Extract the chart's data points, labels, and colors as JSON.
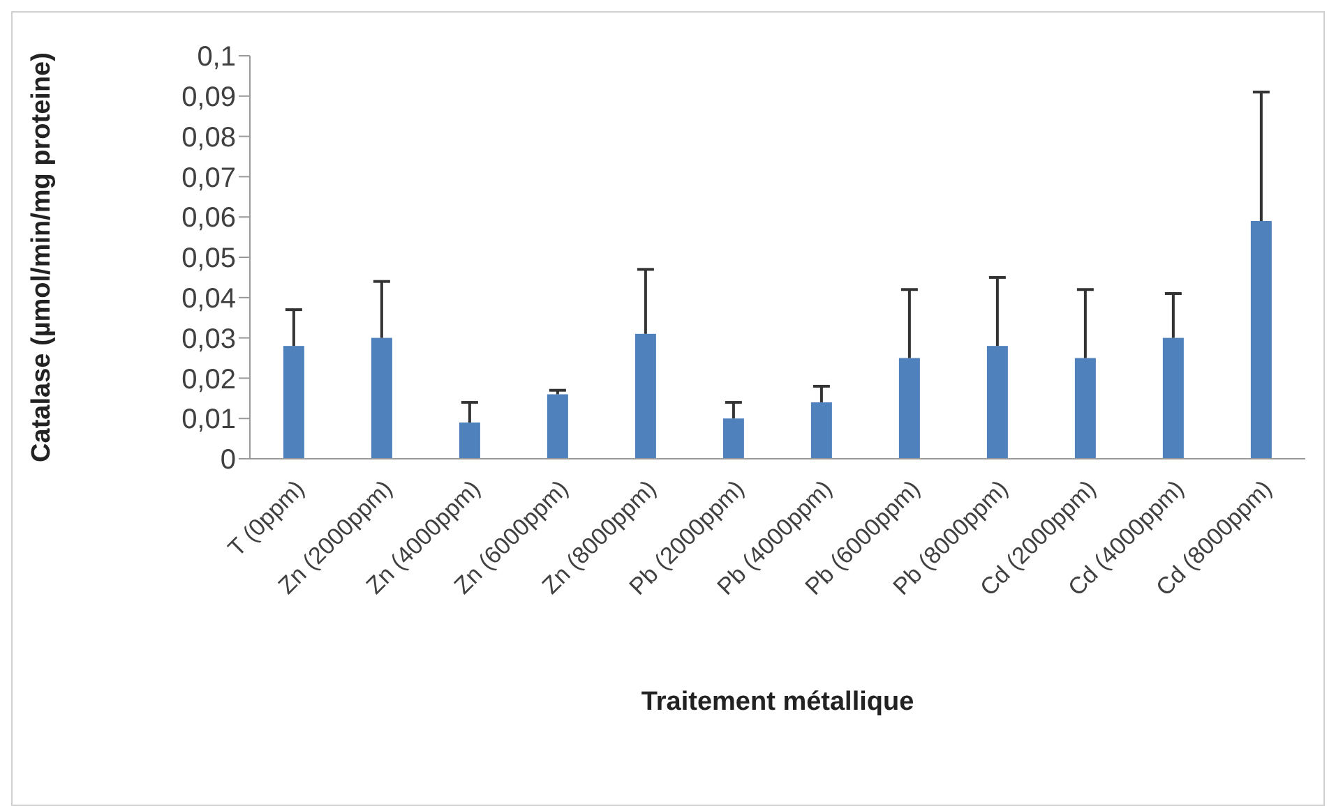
{
  "chart_data": {
    "type": "bar",
    "xlabel": "Traitement métallique",
    "ylabel": "Catalase  (µmol/min/mg proteine)",
    "categories": [
      "T (0ppm)",
      "Zn (2000ppm)",
      "Zn (4000ppm)",
      "Zn (6000ppm)",
      "Zn (8000ppm)",
      "Pb (2000ppm)",
      "Pb (4000ppm)",
      "Pb (6000ppm)",
      "Pb (8000ppm)",
      "Cd (2000ppm)",
      "Cd (4000ppm)",
      "Cd (8000ppm)"
    ],
    "values": [
      0.028,
      0.03,
      0.009,
      0.016,
      0.031,
      0.01,
      0.014,
      0.025,
      0.028,
      0.025,
      0.03,
      0.059
    ],
    "errors": [
      [
        0.028,
        0.037
      ],
      [
        0.03,
        0.044
      ],
      [
        0.009,
        0.014
      ],
      [
        0.016,
        0.017
      ],
      [
        0.031,
        0.047
      ],
      [
        0.01,
        0.014
      ],
      [
        0.014,
        0.018
      ],
      [
        0.025,
        0.042
      ],
      [
        0.028,
        0.045
      ],
      [
        0.025,
        0.042
      ],
      [
        0.03,
        0.041
      ],
      [
        0.059,
        0.091
      ]
    ],
    "color": "#4f81bd",
    "ylim": [
      0,
      0.1
    ],
    "yticks": [
      0,
      {
        "value": 0.01,
        "label": "0,01"
      },
      {
        "value": 0.02,
        "label": "0,02"
      },
      {
        "value": 0.03,
        "label": "0,03"
      },
      {
        "value": 0.04,
        "label": "0,04"
      },
      {
        "value": 0.05,
        "label": "0,05"
      },
      {
        "value": 0.06,
        "label": "0,06"
      },
      {
        "value": 0.07,
        "label": "0,07"
      },
      {
        "value": 0.08,
        "label": "0,08"
      },
      {
        "value": 0.09,
        "label": "0,09"
      },
      {
        "value": 0.1,
        "label": "0,1"
      }
    ]
  }
}
